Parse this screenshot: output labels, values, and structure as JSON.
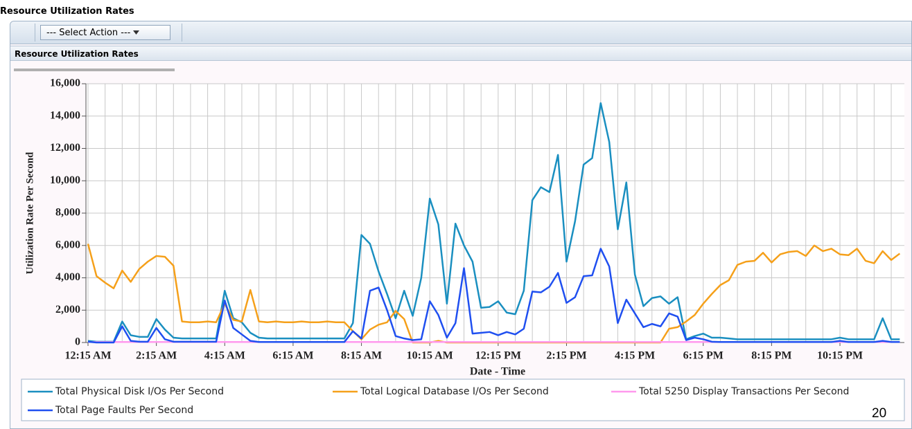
{
  "page_title": "Resource Utilization Rates",
  "toolbar": {
    "action_button": "--- Select Action ---"
  },
  "panel": {
    "title": "Resource Utilization Rates"
  },
  "page_number": "20",
  "chart_data": {
    "type": "line",
    "x_label": "Date - Time",
    "y_label": "Utilization Rate Per Second",
    "categories": [
      "12:15 AM",
      null,
      null,
      null,
      null,
      null,
      null,
      null,
      "2:15 AM",
      null,
      null,
      null,
      null,
      null,
      null,
      null,
      "4:15 AM",
      null,
      null,
      null,
      null,
      null,
      null,
      null,
      "6:15 AM",
      null,
      null,
      null,
      null,
      null,
      null,
      null,
      "8:15 AM",
      null,
      null,
      null,
      null,
      null,
      null,
      null,
      "10:15 AM",
      null,
      null,
      null,
      null,
      null,
      null,
      null,
      "12:15 PM",
      null,
      null,
      null,
      null,
      null,
      null,
      null,
      "2:15 PM",
      null,
      null,
      null,
      null,
      null,
      null,
      null,
      "4:15 PM",
      null,
      null,
      null,
      null,
      null,
      null,
      null,
      "6:15 PM",
      null,
      null,
      null,
      null,
      null,
      null,
      null,
      "8:15 PM",
      null,
      null,
      null,
      null,
      null,
      null,
      null,
      "10:15 PM",
      null,
      null,
      null,
      null,
      null,
      null,
      null
    ],
    "series": [
      {
        "name": "Total Physical Disk I/Os Per Second",
        "color": "#1a8fc0",
        "values": [
          100,
          50,
          50,
          50,
          1300,
          450,
          350,
          350,
          1450,
          800,
          300,
          250,
          250,
          250,
          250,
          250,
          3200,
          1500,
          1250,
          600,
          300,
          250,
          250,
          250,
          250,
          250,
          250,
          250,
          250,
          250,
          250,
          1200,
          6650,
          6100,
          4400,
          3000,
          1500,
          3200,
          1650,
          4000,
          8900,
          7300,
          2400,
          7350,
          6000,
          5000,
          2150,
          2200,
          2550,
          1850,
          1750,
          3200,
          8800,
          9600,
          9300,
          11600,
          5000,
          7500,
          11000,
          11400,
          14800,
          12400,
          7000,
          9900,
          4200,
          2250,
          2750,
          2850,
          2400,
          2800,
          200,
          400,
          550,
          300,
          300,
          250,
          200,
          200,
          200,
          200,
          200,
          200,
          200,
          200,
          200,
          200,
          200,
          200,
          300,
          200,
          200,
          200,
          200,
          1500,
          200,
          200
        ]
      },
      {
        "name": "Total Logical Database I/Os Per Second",
        "color": "#f5a01a",
        "values": [
          6100,
          4100,
          3700,
          3350,
          4450,
          3750,
          4550,
          5000,
          5350,
          5300,
          4750,
          1300,
          1250,
          1250,
          1300,
          1250,
          2400,
          1400,
          1300,
          3250,
          1300,
          1250,
          1300,
          1250,
          1250,
          1300,
          1250,
          1250,
          1300,
          1250,
          1250,
          700,
          200,
          800,
          1100,
          1250,
          1950,
          1450,
          0,
          0,
          0,
          100,
          0,
          0,
          0,
          0,
          0,
          0,
          0,
          0,
          0,
          0,
          0,
          0,
          0,
          0,
          0,
          0,
          0,
          0,
          0,
          0,
          0,
          0,
          0,
          0,
          0,
          0,
          850,
          950,
          1300,
          1700,
          2400,
          3000,
          3550,
          3850,
          4800,
          5000,
          5050,
          5550,
          4950,
          5450,
          5600,
          5650,
          5350,
          6000,
          5650,
          5800,
          5450,
          5400,
          5800,
          5050,
          4900,
          5650,
          5100,
          5500
        ]
      },
      {
        "name": "Total 5250 Display Transactions Per Second",
        "color": "#ff99ee",
        "values": [
          30,
          30,
          30,
          30,
          30,
          30,
          30,
          30,
          30,
          30,
          30,
          30,
          30,
          30,
          30,
          30,
          30,
          30,
          30,
          30,
          30,
          30,
          30,
          30,
          30,
          30,
          30,
          30,
          30,
          30,
          30,
          30,
          30,
          30,
          30,
          30,
          30,
          30,
          30,
          30,
          30,
          30,
          30,
          30,
          30,
          30,
          30,
          30,
          30,
          30,
          30,
          30,
          30,
          30,
          30,
          30,
          30,
          30,
          30,
          30,
          30,
          30,
          30,
          30,
          30,
          30,
          30,
          30,
          30,
          30,
          30,
          30,
          30,
          30,
          30,
          30,
          30,
          30,
          30,
          30,
          30,
          30,
          30,
          30,
          30,
          30,
          30,
          30,
          30,
          30,
          30,
          30,
          30,
          30,
          30,
          30
        ]
      },
      {
        "name": "Total Page Faults Per Second",
        "color": "#1f4ff0",
        "values": [
          50,
          0,
          0,
          0,
          1000,
          100,
          50,
          50,
          900,
          200,
          50,
          50,
          50,
          50,
          50,
          50,
          2600,
          900,
          500,
          100,
          30,
          30,
          30,
          30,
          30,
          30,
          30,
          30,
          30,
          30,
          30,
          700,
          250,
          3200,
          3400,
          2000,
          400,
          250,
          150,
          200,
          2550,
          1700,
          300,
          1200,
          4600,
          550,
          600,
          650,
          450,
          650,
          500,
          850,
          3150,
          3100,
          3450,
          4300,
          2450,
          2800,
          4100,
          4150,
          5800,
          4700,
          1200,
          2650,
          1800,
          950,
          1150,
          1000,
          1800,
          1600,
          150,
          300,
          200,
          50,
          30,
          30,
          30,
          30,
          30,
          30,
          30,
          30,
          30,
          30,
          30,
          30,
          30,
          30,
          100,
          30,
          30,
          30,
          30,
          100,
          30,
          30
        ]
      }
    ],
    "ylim": [
      0,
      16000
    ],
    "yticks": [
      0,
      {
        "value": 2000,
        "label": "2,000"
      },
      {
        "value": 4000,
        "label": "4,000"
      },
      {
        "value": 6000,
        "label": "6,000"
      },
      {
        "value": 8000,
        "label": "8,000"
      },
      {
        "value": 10000,
        "label": "10,000"
      },
      {
        "value": 12000,
        "label": "12,000"
      },
      {
        "value": 14000,
        "label": "14,000"
      },
      {
        "value": 16000,
        "label": "16,000"
      }
    ],
    "grid": true
  }
}
